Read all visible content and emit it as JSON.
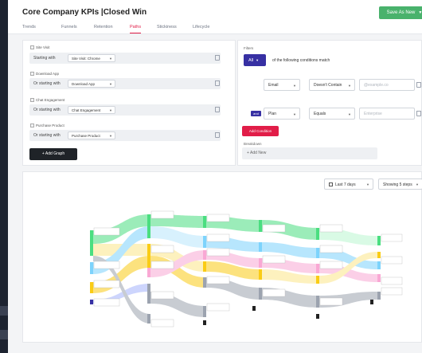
{
  "header": {
    "title": "Core Company KPIs |Closed Win",
    "save_label": "Save As New",
    "tabs": [
      {
        "label": "Trends",
        "active": false
      },
      {
        "label": "Funnels",
        "active": false
      },
      {
        "label": "Retention",
        "active": false
      },
      {
        "label": "Paths",
        "active": true
      },
      {
        "label": "Stickiness",
        "active": false
      },
      {
        "label": "Lifecycle",
        "active": false
      }
    ]
  },
  "steps": [
    {
      "title": "Site Visit",
      "prefix": "Starting with",
      "value": "Site Visit: Chrome"
    },
    {
      "title": "Download App",
      "prefix": "Or starting with",
      "value": "Download App"
    },
    {
      "title": "Chat Engagement",
      "prefix": "Or starting with",
      "value": "Chat Engagement"
    },
    {
      "title": "Purchase Product",
      "prefix": "Or starting with",
      "value": "Purchase Product"
    }
  ],
  "add_graph_label": "+ Add Graph",
  "filters": {
    "label": "Filters",
    "match": "All",
    "match_text": "of the following conditions match",
    "rows": [
      {
        "connector": "",
        "property": "Email",
        "operator": "Doesn't Contain",
        "value_placeholder": "@example.co"
      },
      {
        "connector": "and",
        "property": "Plan",
        "operator": "Equals",
        "value_placeholder": "Enterprise"
      }
    ],
    "add_condition_label": "Add Condition",
    "breakdown_label": "Breakdown",
    "breakdown_add": "+ Add New"
  },
  "chart_controls": {
    "date_range": "Last 7 days",
    "steps_shown": "Showing 5 steps"
  },
  "colors": {
    "accent": "#e11d48",
    "primary": "#3730a3",
    "save": "#49b26c",
    "green": "#4ade80",
    "yellow": "#facc15",
    "blue": "#7dd3fc",
    "pink": "#f9a8d4",
    "grey": "#9ca3af"
  }
}
